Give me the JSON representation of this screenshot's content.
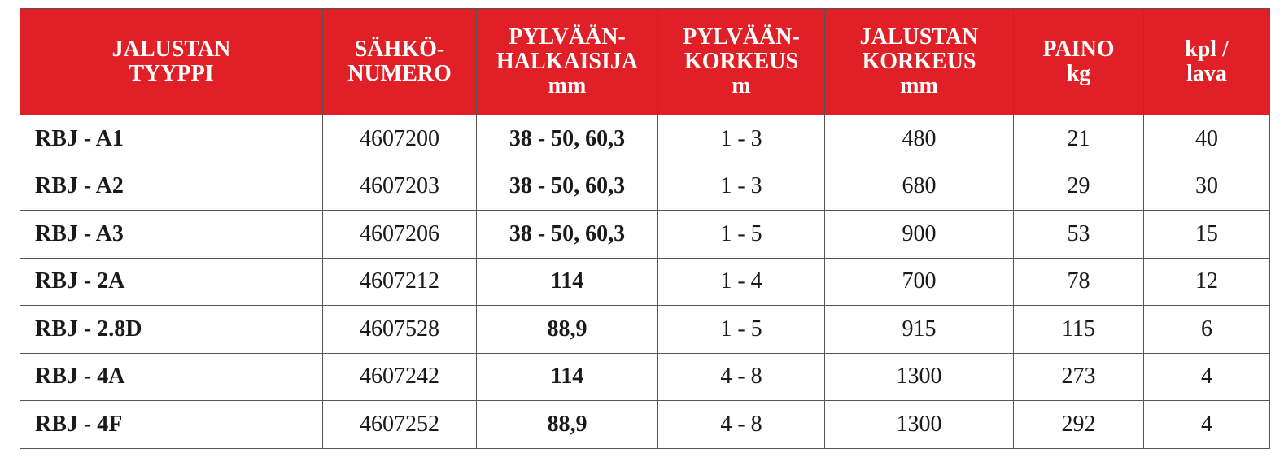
{
  "table": {
    "header": [
      [
        "JALUSTAN",
        "TYYPPI"
      ],
      [
        "SÄHKÖ-",
        "NUMERO"
      ],
      [
        "PYLVÄÄN-",
        "HALKAISIJA",
        "mm"
      ],
      [
        "PYLVÄÄN-",
        "KORKEUS",
        "m"
      ],
      [
        "JALUSTAN",
        "KORKEUS",
        "mm"
      ],
      [
        "PAINO",
        "kg"
      ],
      [
        "kpl /",
        "lava"
      ]
    ],
    "rows": [
      [
        "RBJ - A1",
        "4607200",
        "38 - 50, 60,3",
        "1 - 3",
        "480",
        "21",
        "40"
      ],
      [
        "RBJ - A2",
        "4607203",
        "38 - 50, 60,3",
        "1 - 3",
        "680",
        "29",
        "30"
      ],
      [
        "RBJ - A3",
        "4607206",
        "38 - 50, 60,3",
        "1 - 5",
        "900",
        "53",
        "15"
      ],
      [
        "RBJ - 2A",
        "4607212",
        "114",
        "1 - 4",
        "700",
        "78",
        "12"
      ],
      [
        "RBJ - 2.8D",
        "4607528",
        "88,9",
        "1 - 5",
        "915",
        "115",
        "6"
      ],
      [
        "RBJ - 4A",
        "4607242",
        "114",
        "4 - 8",
        "1300",
        "273",
        "4"
      ],
      [
        "RBJ - 4F",
        "4607252",
        "88,9",
        "4 - 8",
        "1300",
        "292",
        "4"
      ]
    ]
  }
}
